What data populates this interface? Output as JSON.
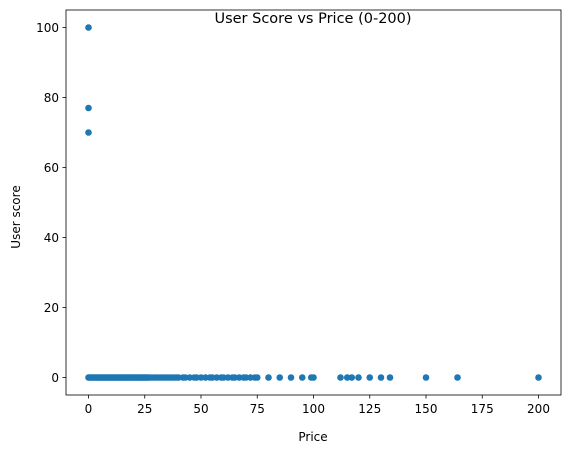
{
  "chart_data": {
    "type": "scatter",
    "title": "User Score vs Price (0-200)",
    "xlabel": "Price",
    "ylabel": "User score",
    "xlim": [
      -10,
      210
    ],
    "ylim": [
      -5,
      105
    ],
    "xticks": [
      0,
      25,
      50,
      75,
      100,
      125,
      150,
      175,
      200
    ],
    "yticks": [
      0,
      20,
      40,
      60,
      80,
      100
    ],
    "grid": false,
    "color": "#1f77b4",
    "series": [
      {
        "x": [
          0,
          0,
          0,
          0,
          0.5,
          1,
          1.5,
          2,
          2.5,
          3,
          3.5,
          4,
          4.5,
          5,
          5.5,
          6,
          6.5,
          7,
          7.5,
          8,
          8.5,
          9,
          9.5,
          10,
          10.5,
          11,
          11.5,
          12,
          12.5,
          13,
          13.5,
          14,
          14.5,
          15,
          15.5,
          16,
          16.5,
          17,
          17.5,
          18,
          18.5,
          19,
          19.5,
          20,
          20.5,
          21,
          21.5,
          22,
          22.5,
          23,
          23.5,
          24,
          24.5,
          25,
          25.5,
          26,
          26.5,
          27,
          28,
          29,
          30,
          31,
          32,
          33,
          34,
          35,
          36,
          37,
          38,
          39,
          40,
          42,
          43,
          45,
          47,
          48,
          50,
          52,
          54,
          55,
          57,
          59,
          60,
          62,
          64,
          65,
          67,
          69,
          70,
          72,
          74,
          75,
          80,
          85,
          90,
          95,
          99,
          100,
          112,
          115,
          117,
          120,
          125,
          130,
          134,
          150,
          164,
          200
        ],
        "y": [
          100,
          77,
          70,
          0,
          0,
          0,
          0,
          0,
          0,
          0,
          0,
          0,
          0,
          0,
          0,
          0,
          0,
          0,
          0,
          0,
          0,
          0,
          0,
          0,
          0,
          0,
          0,
          0,
          0,
          0,
          0,
          0,
          0,
          0,
          0,
          0,
          0,
          0,
          0,
          0,
          0,
          0,
          0,
          0,
          0,
          0,
          0,
          0,
          0,
          0,
          0,
          0,
          0,
          0,
          0,
          0,
          0,
          0,
          0,
          0,
          0,
          0,
          0,
          0,
          0,
          0,
          0,
          0,
          0,
          0,
          0,
          0,
          0,
          0,
          0,
          0,
          0,
          0,
          0,
          0,
          0,
          0,
          0,
          0,
          0,
          0,
          0,
          0,
          0,
          0,
          0,
          0,
          0,
          0,
          0,
          0,
          0,
          0,
          0,
          0,
          0,
          0,
          0,
          0,
          0,
          0,
          0,
          0
        ]
      }
    ]
  }
}
